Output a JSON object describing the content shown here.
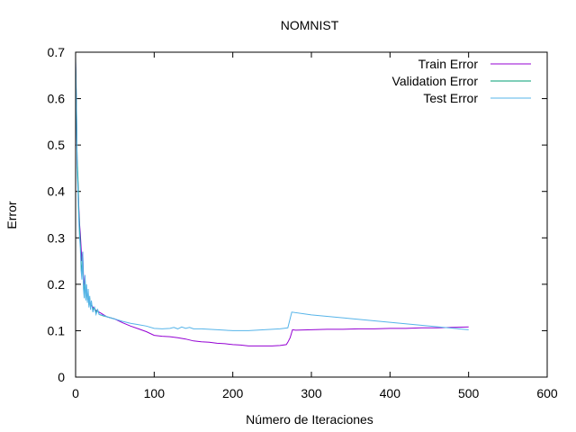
{
  "chart_data": {
    "type": "line",
    "title": "NOMNIST",
    "xlabel": "Número de Iteraciones",
    "ylabel": "Error",
    "xlim": [
      0,
      600
    ],
    "ylim": [
      0,
      0.7
    ],
    "xticks": [
      0,
      100,
      200,
      300,
      400,
      500,
      600
    ],
    "yticks": [
      0,
      0.1,
      0.2,
      0.3,
      0.4,
      0.5,
      0.6,
      0.7
    ],
    "xtick_labels": [
      "0",
      "100",
      "200",
      "300",
      "400",
      "500",
      "600"
    ],
    "ytick_labels": [
      "0",
      "0.1",
      "0.2",
      "0.3",
      "0.4",
      "0.5",
      "0.6",
      "0.7"
    ],
    "grid": false,
    "legend_position": "top-right",
    "series": [
      {
        "name": "Train Error",
        "color": "#9400d3",
        "x": [
          0,
          1,
          2,
          3,
          4,
          5,
          6,
          7,
          8,
          9,
          10,
          11,
          12,
          14,
          16,
          18,
          20,
          25,
          30,
          40,
          50,
          60,
          70,
          80,
          90,
          100,
          110,
          120,
          130,
          140,
          150,
          160,
          170,
          180,
          190,
          200,
          210,
          220,
          230,
          240,
          250,
          260,
          268,
          270,
          273,
          276,
          280,
          300,
          320,
          340,
          360,
          380,
          400,
          420,
          440,
          460,
          480,
          500
        ],
        "y": [
          0.68,
          0.58,
          0.46,
          0.42,
          0.37,
          0.33,
          0.31,
          0.28,
          0.25,
          0.27,
          0.22,
          0.2,
          0.19,
          0.18,
          0.17,
          0.16,
          0.155,
          0.145,
          0.14,
          0.13,
          0.125,
          0.117,
          0.11,
          0.104,
          0.098,
          0.09,
          0.088,
          0.087,
          0.085,
          0.082,
          0.078,
          0.076,
          0.075,
          0.073,
          0.072,
          0.07,
          0.069,
          0.067,
          0.067,
          0.067,
          0.067,
          0.068,
          0.07,
          0.075,
          0.085,
          0.102,
          0.101,
          0.102,
          0.103,
          0.103,
          0.104,
          0.104,
          0.105,
          0.105,
          0.106,
          0.106,
          0.107,
          0.108
        ]
      },
      {
        "name": "Validation Error",
        "color": "#009e73",
        "x": [
          0,
          1,
          2,
          3,
          4,
          5,
          6,
          7,
          8,
          9,
          10,
          11,
          12,
          13,
          14,
          15,
          16,
          17,
          18,
          19,
          20,
          22,
          24,
          26,
          28,
          30,
          35,
          40,
          50
        ],
        "y": [
          0.67,
          0.59,
          0.47,
          0.43,
          0.36,
          0.32,
          0.29,
          0.25,
          0.22,
          0.26,
          0.2,
          0.18,
          0.21,
          0.17,
          0.19,
          0.165,
          0.18,
          0.155,
          0.17,
          0.15,
          0.16,
          0.145,
          0.15,
          0.14,
          0.145,
          0.135,
          0.132,
          0.13,
          0.125
        ]
      },
      {
        "name": "Test Error",
        "color": "#56b4e9",
        "x": [
          0,
          1,
          2,
          3,
          4,
          5,
          6,
          7,
          8,
          9,
          10,
          11,
          12,
          13,
          14,
          15,
          16,
          17,
          18,
          19,
          20,
          22,
          24,
          26,
          28,
          30,
          35,
          40,
          50,
          60,
          70,
          80,
          90,
          100,
          110,
          120,
          125,
          130,
          135,
          140,
          145,
          150,
          160,
          170,
          180,
          190,
          200,
          210,
          220,
          230,
          240,
          250,
          260,
          270,
          275,
          300,
          350,
          400,
          450,
          500
        ],
        "y": [
          0.69,
          0.6,
          0.45,
          0.4,
          0.34,
          0.3,
          0.28,
          0.23,
          0.21,
          0.27,
          0.19,
          0.17,
          0.22,
          0.165,
          0.2,
          0.16,
          0.19,
          0.15,
          0.175,
          0.145,
          0.165,
          0.14,
          0.15,
          0.135,
          0.145,
          0.135,
          0.133,
          0.13,
          0.125,
          0.12,
          0.116,
          0.113,
          0.11,
          0.105,
          0.104,
          0.105,
          0.107,
          0.104,
          0.108,
          0.105,
          0.107,
          0.104,
          0.104,
          0.103,
          0.102,
          0.101,
          0.1,
          0.1,
          0.1,
          0.101,
          0.102,
          0.103,
          0.104,
          0.106,
          0.14,
          0.134,
          0.126,
          0.118,
          0.11,
          0.102
        ]
      }
    ]
  }
}
